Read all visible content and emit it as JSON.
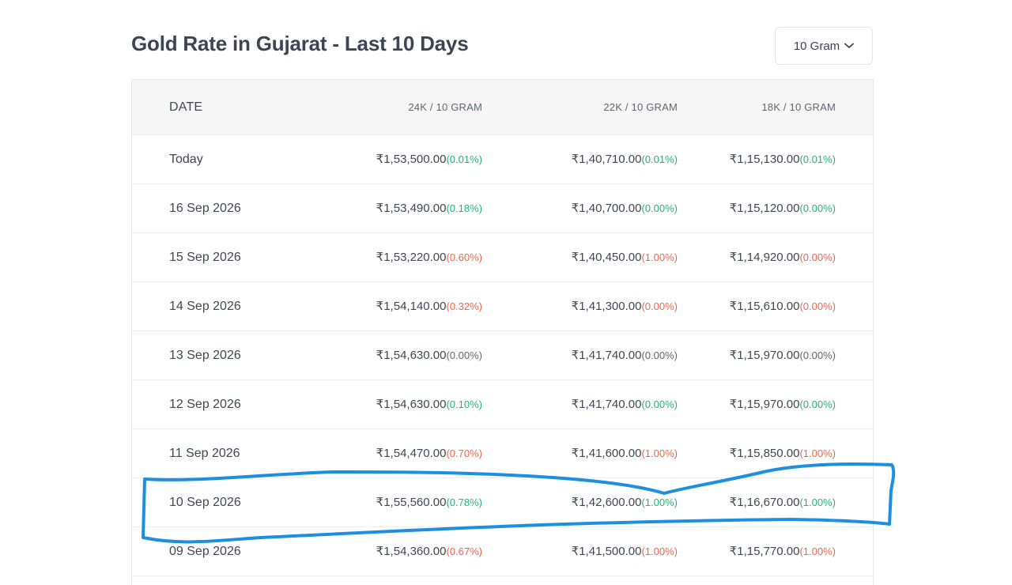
{
  "header": {
    "title": "Gold Rate in Gujarat - Last 10 Days",
    "unit_select": {
      "value": "10 Gram",
      "icon": "chevron-down-icon"
    }
  },
  "table": {
    "columns": [
      "DATE",
      "24K / 10 GRAM",
      "22K / 10 GRAM",
      "18K / 10 GRAM"
    ],
    "rows": [
      {
        "date": "Today",
        "k24": "₹1,53,500.00",
        "k24_chg": "(0.01%)",
        "k24_dir": "up",
        "k22": "₹1,40,710.00",
        "k22_chg": "(0.01%)",
        "k22_dir": "up",
        "k18": "₹1,15,130.00",
        "k18_chg": "(0.01%)",
        "k18_dir": "up"
      },
      {
        "date": "16 Sep 2026",
        "k24": "₹1,53,490.00",
        "k24_chg": "(0.18%)",
        "k24_dir": "up",
        "k22": "₹1,40,700.00",
        "k22_chg": "(0.00%)",
        "k22_dir": "up",
        "k18": "₹1,15,120.00",
        "k18_chg": "(0.00%)",
        "k18_dir": "up"
      },
      {
        "date": "15 Sep 2026",
        "k24": "₹1,53,220.00",
        "k24_chg": "(0.60%)",
        "k24_dir": "down",
        "k22": "₹1,40,450.00",
        "k22_chg": "(1.00%)",
        "k22_dir": "down",
        "k18": "₹1,14,920.00",
        "k18_chg": "(0.00%)",
        "k18_dir": "down"
      },
      {
        "date": "14 Sep 2026",
        "k24": "₹1,54,140.00",
        "k24_chg": "(0.32%)",
        "k24_dir": "down",
        "k22": "₹1,41,300.00",
        "k22_chg": "(0.00%)",
        "k22_dir": "down",
        "k18": "₹1,15,610.00",
        "k18_chg": "(0.00%)",
        "k18_dir": "down"
      },
      {
        "date": "13 Sep 2026",
        "k24": "₹1,54,630.00",
        "k24_chg": "(0.00%)",
        "k24_dir": "flat",
        "k22": "₹1,41,740.00",
        "k22_chg": "(0.00%)",
        "k22_dir": "flat",
        "k18": "₹1,15,970.00",
        "k18_chg": "(0.00%)",
        "k18_dir": "flat"
      },
      {
        "date": "12 Sep 2026",
        "k24": "₹1,54,630.00",
        "k24_chg": "(0.10%)",
        "k24_dir": "up",
        "k22": "₹1,41,740.00",
        "k22_chg": "(0.00%)",
        "k22_dir": "up",
        "k18": "₹1,15,970.00",
        "k18_chg": "(0.00%)",
        "k18_dir": "up"
      },
      {
        "date": "11 Sep 2026",
        "k24": "₹1,54,470.00",
        "k24_chg": "(0.70%)",
        "k24_dir": "down",
        "k22": "₹1,41,600.00",
        "k22_chg": "(1.00%)",
        "k22_dir": "down",
        "k18": "₹1,15,850.00",
        "k18_chg": "(1.00%)",
        "k18_dir": "down"
      },
      {
        "date": "10 Sep 2026",
        "k24": "₹1,55,560.00",
        "k24_chg": "(0.78%)",
        "k24_dir": "up",
        "k22": "₹1,42,600.00",
        "k22_chg": "(1.00%)",
        "k22_dir": "up",
        "k18": "₹1,16,670.00",
        "k18_chg": "(1.00%)",
        "k18_dir": "up"
      },
      {
        "date": "09 Sep 2026",
        "k24": "₹1,54,360.00",
        "k24_chg": "(0.67%)",
        "k24_dir": "down",
        "k22": "₹1,41,500.00",
        "k22_chg": "(1.00%)",
        "k22_dir": "down",
        "k18": "₹1,15,770.00",
        "k18_chg": "(1.00%)",
        "k18_dir": "down"
      }
    ]
  },
  "annotation": {
    "highlighted_row": "10 Sep 2026",
    "color": "#1e8fe0"
  },
  "colors": {
    "up": "#1fb47a",
    "down": "#f0644b",
    "flat": "#5f6673"
  }
}
